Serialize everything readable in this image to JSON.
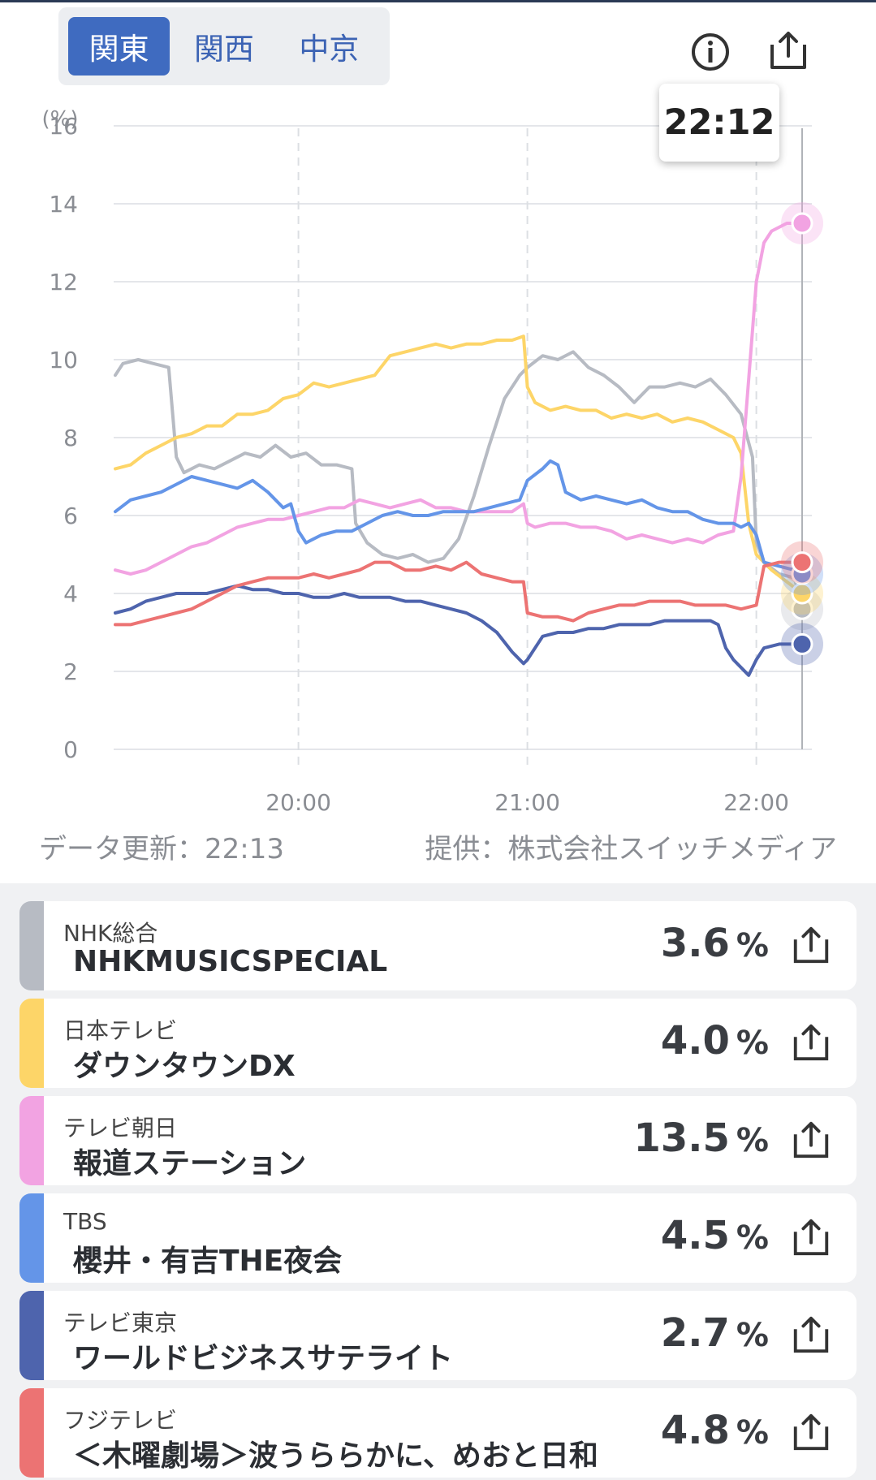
{
  "region_tabs": [
    {
      "label": "関東",
      "active": true
    },
    {
      "label": "関西",
      "active": false
    },
    {
      "label": "中京",
      "active": false
    }
  ],
  "icons": {
    "info": "info-icon",
    "share": "share-icon"
  },
  "tooltip": {
    "time": "22:12"
  },
  "footer": {
    "updated": "データ更新：22:13",
    "provider": "提供：株式会社スイッチメディア"
  },
  "chart_data": {
    "type": "line",
    "ylabel": "(%)",
    "ylim": [
      0,
      16
    ],
    "yticks": [
      0,
      2,
      4,
      6,
      8,
      10,
      12,
      14,
      16
    ],
    "x_range": [
      "19:12",
      "22:12"
    ],
    "xticks": [
      {
        "minute": 48,
        "label": "20:00"
      },
      {
        "minute": 108,
        "label": "21:00"
      },
      {
        "minute": 168,
        "label": "22:00"
      }
    ],
    "series": [
      {
        "color": "#b7bbc3",
        "points": [
          [
            0,
            9.6
          ],
          [
            2,
            9.9
          ],
          [
            6,
            10
          ],
          [
            10,
            9.9
          ],
          [
            14,
            9.8
          ],
          [
            16,
            7.5
          ],
          [
            18,
            7.1
          ],
          [
            22,
            7.3
          ],
          [
            26,
            7.2
          ],
          [
            30,
            7.4
          ],
          [
            34,
            7.6
          ],
          [
            38,
            7.5
          ],
          [
            42,
            7.8
          ],
          [
            46,
            7.5
          ],
          [
            50,
            7.6
          ],
          [
            54,
            7.3
          ],
          [
            58,
            7.3
          ],
          [
            62,
            7.2
          ],
          [
            63,
            5.8
          ],
          [
            66,
            5.3
          ],
          [
            70,
            5
          ],
          [
            74,
            4.9
          ],
          [
            78,
            5
          ],
          [
            82,
            4.8
          ],
          [
            86,
            4.9
          ],
          [
            90,
            5.4
          ],
          [
            94,
            6.5
          ],
          [
            98,
            7.8
          ],
          [
            102,
            9
          ],
          [
            106,
            9.6
          ],
          [
            108,
            9.8
          ],
          [
            112,
            10.1
          ],
          [
            116,
            10
          ],
          [
            120,
            10.2
          ],
          [
            124,
            9.8
          ],
          [
            128,
            9.6
          ],
          [
            132,
            9.3
          ],
          [
            136,
            8.9
          ],
          [
            140,
            9.3
          ],
          [
            144,
            9.3
          ],
          [
            148,
            9.4
          ],
          [
            152,
            9.3
          ],
          [
            156,
            9.5
          ],
          [
            160,
            9.1
          ],
          [
            164,
            8.6
          ],
          [
            167,
            7.5
          ],
          [
            168,
            5.3
          ],
          [
            170,
            4.8
          ],
          [
            174,
            4.5
          ],
          [
            178,
            4.4
          ],
          [
            180,
            3.6
          ]
        ]
      },
      {
        "color": "#fdd568",
        "points": [
          [
            0,
            7.2
          ],
          [
            4,
            7.3
          ],
          [
            8,
            7.6
          ],
          [
            12,
            7.8
          ],
          [
            16,
            8
          ],
          [
            20,
            8.1
          ],
          [
            24,
            8.3
          ],
          [
            28,
            8.3
          ],
          [
            32,
            8.6
          ],
          [
            36,
            8.6
          ],
          [
            40,
            8.7
          ],
          [
            44,
            9
          ],
          [
            48,
            9.1
          ],
          [
            52,
            9.4
          ],
          [
            56,
            9.3
          ],
          [
            60,
            9.4
          ],
          [
            64,
            9.5
          ],
          [
            68,
            9.6
          ],
          [
            72,
            10.1
          ],
          [
            76,
            10.2
          ],
          [
            80,
            10.3
          ],
          [
            84,
            10.4
          ],
          [
            88,
            10.3
          ],
          [
            92,
            10.4
          ],
          [
            96,
            10.4
          ],
          [
            100,
            10.5
          ],
          [
            104,
            10.5
          ],
          [
            107,
            10.6
          ],
          [
            108,
            9.3
          ],
          [
            110,
            8.9
          ],
          [
            114,
            8.7
          ],
          [
            118,
            8.8
          ],
          [
            122,
            8.7
          ],
          [
            126,
            8.7
          ],
          [
            130,
            8.5
          ],
          [
            134,
            8.6
          ],
          [
            138,
            8.5
          ],
          [
            142,
            8.6
          ],
          [
            146,
            8.4
          ],
          [
            150,
            8.5
          ],
          [
            154,
            8.4
          ],
          [
            158,
            8.2
          ],
          [
            162,
            8
          ],
          [
            164,
            7.6
          ],
          [
            166,
            5.8
          ],
          [
            168,
            5
          ],
          [
            172,
            4.6
          ],
          [
            176,
            4.3
          ],
          [
            180,
            4
          ]
        ]
      },
      {
        "color": "#f2a3e2",
        "points": [
          [
            0,
            4.6
          ],
          [
            4,
            4.5
          ],
          [
            8,
            4.6
          ],
          [
            12,
            4.8
          ],
          [
            16,
            5
          ],
          [
            20,
            5.2
          ],
          [
            24,
            5.3
          ],
          [
            28,
            5.5
          ],
          [
            32,
            5.7
          ],
          [
            36,
            5.8
          ],
          [
            40,
            5.9
          ],
          [
            44,
            5.9
          ],
          [
            48,
            6
          ],
          [
            52,
            6.1
          ],
          [
            56,
            6.2
          ],
          [
            60,
            6.2
          ],
          [
            64,
            6.4
          ],
          [
            68,
            6.3
          ],
          [
            72,
            6.2
          ],
          [
            76,
            6.3
          ],
          [
            80,
            6.4
          ],
          [
            84,
            6.2
          ],
          [
            88,
            6.2
          ],
          [
            92,
            6.1
          ],
          [
            96,
            6.1
          ],
          [
            100,
            6.1
          ],
          [
            104,
            6.1
          ],
          [
            107,
            6.3
          ],
          [
            108,
            5.8
          ],
          [
            110,
            5.7
          ],
          [
            114,
            5.8
          ],
          [
            118,
            5.8
          ],
          [
            122,
            5.7
          ],
          [
            126,
            5.7
          ],
          [
            130,
            5.6
          ],
          [
            134,
            5.4
          ],
          [
            138,
            5.5
          ],
          [
            142,
            5.4
          ],
          [
            146,
            5.3
          ],
          [
            150,
            5.4
          ],
          [
            154,
            5.3
          ],
          [
            158,
            5.5
          ],
          [
            162,
            5.6
          ],
          [
            164,
            7
          ],
          [
            166,
            9.5
          ],
          [
            168,
            12
          ],
          [
            170,
            13
          ],
          [
            172,
            13.3
          ],
          [
            176,
            13.5
          ],
          [
            180,
            13.5
          ]
        ]
      },
      {
        "color": "#6495e8",
        "points": [
          [
            0,
            6.1
          ],
          [
            4,
            6.4
          ],
          [
            8,
            6.5
          ],
          [
            12,
            6.6
          ],
          [
            16,
            6.8
          ],
          [
            20,
            7
          ],
          [
            24,
            6.9
          ],
          [
            28,
            6.8
          ],
          [
            32,
            6.7
          ],
          [
            36,
            6.9
          ],
          [
            40,
            6.6
          ],
          [
            44,
            6.2
          ],
          [
            46,
            6.3
          ],
          [
            48,
            5.6
          ],
          [
            50,
            5.3
          ],
          [
            54,
            5.5
          ],
          [
            58,
            5.6
          ],
          [
            62,
            5.6
          ],
          [
            66,
            5.8
          ],
          [
            70,
            6
          ],
          [
            74,
            6.1
          ],
          [
            78,
            6
          ],
          [
            82,
            6
          ],
          [
            86,
            6.1
          ],
          [
            90,
            6.1
          ],
          [
            94,
            6.1
          ],
          [
            98,
            6.2
          ],
          [
            102,
            6.3
          ],
          [
            106,
            6.4
          ],
          [
            108,
            6.9
          ],
          [
            112,
            7.2
          ],
          [
            114,
            7.4
          ],
          [
            116,
            7.3
          ],
          [
            118,
            6.6
          ],
          [
            122,
            6.4
          ],
          [
            126,
            6.5
          ],
          [
            130,
            6.4
          ],
          [
            134,
            6.3
          ],
          [
            138,
            6.4
          ],
          [
            142,
            6.2
          ],
          [
            146,
            6.1
          ],
          [
            150,
            6.1
          ],
          [
            154,
            5.9
          ],
          [
            158,
            5.8
          ],
          [
            162,
            5.8
          ],
          [
            164,
            5.7
          ],
          [
            166,
            5.8
          ],
          [
            168,
            5.5
          ],
          [
            170,
            4.8
          ],
          [
            174,
            4.7
          ],
          [
            178,
            4.6
          ],
          [
            180,
            4.5
          ]
        ]
      },
      {
        "color": "#4e64ad",
        "points": [
          [
            0,
            3.5
          ],
          [
            4,
            3.6
          ],
          [
            8,
            3.8
          ],
          [
            12,
            3.9
          ],
          [
            16,
            4
          ],
          [
            20,
            4
          ],
          [
            24,
            4
          ],
          [
            28,
            4.1
          ],
          [
            32,
            4.2
          ],
          [
            36,
            4.1
          ],
          [
            40,
            4.1
          ],
          [
            44,
            4
          ],
          [
            48,
            4
          ],
          [
            52,
            3.9
          ],
          [
            56,
            3.9
          ],
          [
            60,
            4
          ],
          [
            64,
            3.9
          ],
          [
            68,
            3.9
          ],
          [
            72,
            3.9
          ],
          [
            76,
            3.8
          ],
          [
            80,
            3.8
          ],
          [
            84,
            3.7
          ],
          [
            88,
            3.6
          ],
          [
            92,
            3.5
          ],
          [
            96,
            3.3
          ],
          [
            100,
            3
          ],
          [
            104,
            2.5
          ],
          [
            107,
            2.2
          ],
          [
            108,
            2.3
          ],
          [
            112,
            2.9
          ],
          [
            116,
            3
          ],
          [
            120,
            3
          ],
          [
            124,
            3.1
          ],
          [
            128,
            3.1
          ],
          [
            132,
            3.2
          ],
          [
            136,
            3.2
          ],
          [
            140,
            3.2
          ],
          [
            144,
            3.3
          ],
          [
            148,
            3.3
          ],
          [
            152,
            3.3
          ],
          [
            156,
            3.3
          ],
          [
            158,
            3.2
          ],
          [
            160,
            2.6
          ],
          [
            162,
            2.3
          ],
          [
            166,
            1.9
          ],
          [
            168,
            2.3
          ],
          [
            170,
            2.6
          ],
          [
            174,
            2.7
          ],
          [
            180,
            2.7
          ]
        ]
      },
      {
        "color": "#ec7373",
        "points": [
          [
            0,
            3.2
          ],
          [
            4,
            3.2
          ],
          [
            8,
            3.3
          ],
          [
            12,
            3.4
          ],
          [
            16,
            3.5
          ],
          [
            20,
            3.6
          ],
          [
            24,
            3.8
          ],
          [
            28,
            4
          ],
          [
            32,
            4.2
          ],
          [
            36,
            4.3
          ],
          [
            40,
            4.4
          ],
          [
            44,
            4.4
          ],
          [
            48,
            4.4
          ],
          [
            52,
            4.5
          ],
          [
            56,
            4.4
          ],
          [
            60,
            4.5
          ],
          [
            64,
            4.6
          ],
          [
            68,
            4.8
          ],
          [
            72,
            4.8
          ],
          [
            76,
            4.6
          ],
          [
            80,
            4.6
          ],
          [
            84,
            4.7
          ],
          [
            88,
            4.6
          ],
          [
            92,
            4.8
          ],
          [
            96,
            4.5
          ],
          [
            100,
            4.4
          ],
          [
            104,
            4.3
          ],
          [
            107,
            4.3
          ],
          [
            108,
            3.5
          ],
          [
            112,
            3.4
          ],
          [
            116,
            3.4
          ],
          [
            120,
            3.3
          ],
          [
            124,
            3.5
          ],
          [
            128,
            3.6
          ],
          [
            132,
            3.7
          ],
          [
            136,
            3.7
          ],
          [
            140,
            3.8
          ],
          [
            144,
            3.8
          ],
          [
            148,
            3.8
          ],
          [
            152,
            3.7
          ],
          [
            156,
            3.7
          ],
          [
            160,
            3.7
          ],
          [
            164,
            3.6
          ],
          [
            168,
            3.7
          ],
          [
            170,
            4.7
          ],
          [
            174,
            4.8
          ],
          [
            178,
            4.8
          ],
          [
            180,
            4.8
          ]
        ]
      }
    ]
  },
  "programs": [
    {
      "channel": "NHK総合",
      "title": "NHKMUSICSPECIAL",
      "rating": "3.6",
      "unit": "%",
      "color": "#b7bbc3"
    },
    {
      "channel": "日本テレビ",
      "title": "ダウンタウンDX",
      "rating": "4.0",
      "unit": "%",
      "color": "#fdd568"
    },
    {
      "channel": "テレビ朝日",
      "title": "報道ステーション",
      "rating": "13.5",
      "unit": "%",
      "color": "#f2a3e2"
    },
    {
      "channel": "TBS",
      "title": "櫻井・有吉THE夜会",
      "rating": "4.5",
      "unit": "%",
      "color": "#6495e8"
    },
    {
      "channel": "テレビ東京",
      "title": "ワールドビジネスサテライト",
      "rating": "2.7",
      "unit": "%",
      "color": "#4e64ad"
    },
    {
      "channel": "フジテレビ",
      "title": "＜木曜劇場＞波うららかに、めおと日和",
      "rating": "4.8",
      "unit": "%",
      "color": "#ec7373"
    }
  ]
}
